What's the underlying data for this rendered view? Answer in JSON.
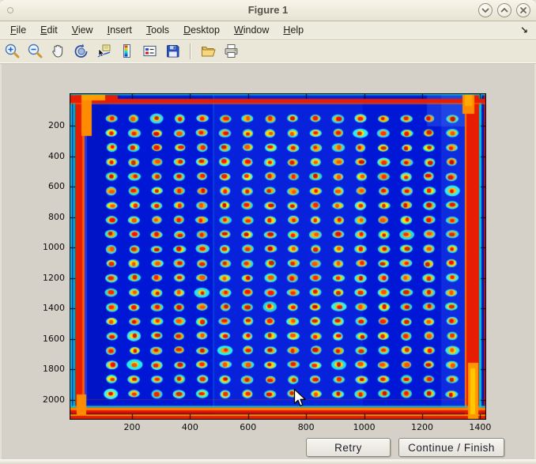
{
  "window": {
    "title": "Figure 1",
    "controls": [
      {
        "name": "minimize"
      },
      {
        "name": "maximize"
      },
      {
        "name": "close"
      }
    ]
  },
  "menubar": {
    "items": [
      "File",
      "Edit",
      "View",
      "Insert",
      "Tools",
      "Desktop",
      "Window",
      "Help"
    ],
    "dock_glyph": "↘"
  },
  "toolbar": {
    "tools": [
      "zoom-in",
      "zoom-out",
      "pan",
      "rotate-3d",
      "data-cursor",
      "insert-colorbar",
      "insert-legend",
      "save-figure",
      "open-file",
      "print-figure"
    ]
  },
  "figure": {
    "axes": {
      "x_ticks": [
        "200",
        "400",
        "600",
        "800",
        "1000",
        "1200",
        "1400"
      ],
      "y_ticks": [
        "200",
        "400",
        "600",
        "800",
        "1000",
        "1200",
        "1400",
        "1600",
        "1800",
        "2000"
      ]
    },
    "image": {
      "description": "jet-colormap scanned image of a microplate spot array",
      "grid_rows": 20,
      "grid_cols": 16,
      "colors": {
        "background": "#0017d6",
        "halo": "#28e1eb",
        "ring": "#ffc400",
        "spot_center": "#d21400",
        "border_red": "#e81c00",
        "border_orange": "#ff8c00",
        "edge_cyan": "#00c6d4"
      }
    }
  },
  "actions": {
    "retry": "Retry",
    "continue": "Continue / Finish"
  }
}
